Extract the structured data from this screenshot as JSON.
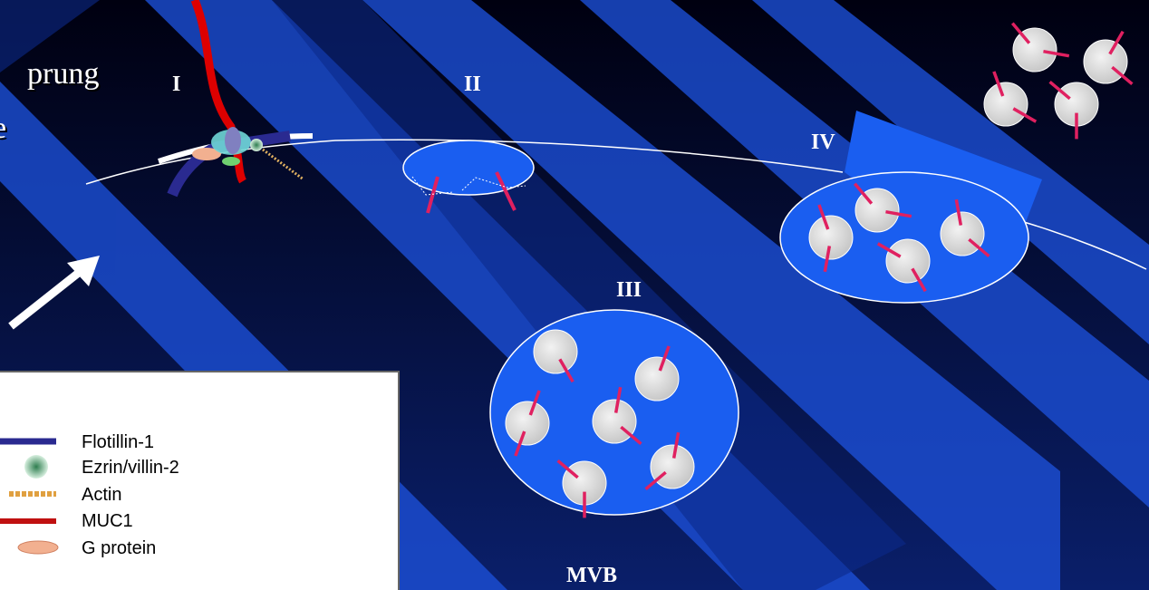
{
  "slide_text": [
    "prung",
    "e"
  ],
  "stages": [
    "I",
    "II",
    "III",
    "IV"
  ],
  "mvb_label": "MVB",
  "legend": [
    "Flotillin-1",
    "Ezrin/villin-2",
    "Actin",
    "MUC1",
    "G protein"
  ]
}
